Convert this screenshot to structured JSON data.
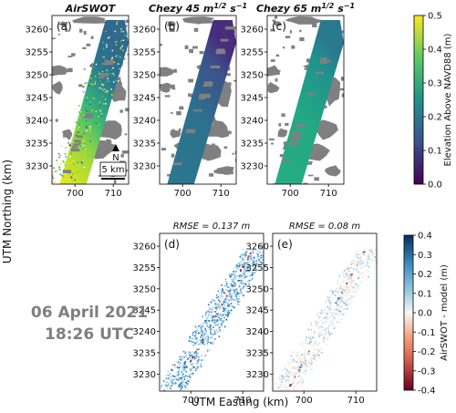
{
  "figure": {
    "date_line": "06 April 2021",
    "time_line": "18:26 UTC",
    "xlabel": "UTM Easting (km)",
    "ylabel": "UTM Northing (km)",
    "north_arrow_label": "N",
    "scalebar_label": "5 km"
  },
  "chart_data": [
    {
      "type": "heatmap",
      "panel_label": "(a)",
      "title": "AirSWOT",
      "colorbar": "elevation",
      "x_ticks": [
        700,
        710
      ],
      "y_ticks": [
        3230,
        3235,
        3240,
        3245,
        3250,
        3255,
        3260
      ],
      "xlim": [
        694,
        714
      ],
      "ylim": [
        3226,
        3263
      ]
    },
    {
      "type": "heatmap",
      "panel_label": "(b)",
      "title": "Chezy 45 m",
      "title_sup": "1/2",
      "title_unit": " s",
      "title_sup2": "−1",
      "colorbar": "elevation",
      "x_ticks": [
        700,
        710
      ],
      "y_ticks": [
        3230,
        3235,
        3240,
        3245,
        3250,
        3255,
        3260
      ],
      "xlim": [
        694,
        714
      ],
      "ylim": [
        3226,
        3263
      ]
    },
    {
      "type": "heatmap",
      "panel_label": "(c)",
      "title": "Chezy 65 m",
      "title_sup": "1/2",
      "title_unit": " s",
      "title_sup2": "−1",
      "colorbar": "elevation",
      "x_ticks": [
        700,
        710
      ],
      "y_ticks": [
        3230,
        3235,
        3240,
        3245,
        3250,
        3255,
        3260
      ],
      "xlim": [
        694,
        714
      ],
      "ylim": [
        3226,
        3263
      ]
    },
    {
      "type": "heatmap",
      "panel_label": "(d)",
      "title": "RMSE = 0.137 m",
      "colorbar": "difference",
      "x_ticks": [
        700,
        710
      ],
      "y_ticks": [
        3230,
        3235,
        3240,
        3245,
        3250,
        3255,
        3260
      ],
      "xlim": [
        694,
        714
      ],
      "ylim": [
        3226,
        3263
      ]
    },
    {
      "type": "heatmap",
      "panel_label": "(e)",
      "title": "RMSE = 0.08 m",
      "colorbar": "difference",
      "x_ticks": [
        700,
        710
      ],
      "y_ticks": [
        3230,
        3235,
        3240,
        3245,
        3250,
        3255,
        3260
      ],
      "xlim": [
        694,
        714
      ],
      "ylim": [
        3226,
        3263
      ]
    },
    {
      "type": "colorbar",
      "name": "elevation",
      "label": "Elevation Above NAVD88 (m)",
      "range": [
        0.0,
        0.5
      ],
      "ticks": [
        "0.0",
        "0.1",
        "0.2",
        "0.3",
        "0.4",
        "0.5"
      ],
      "colormap": [
        "#440154",
        "#3b528b",
        "#21918c",
        "#5ec962",
        "#fde725"
      ]
    },
    {
      "type": "colorbar",
      "name": "difference",
      "label": "AirSWOT - model (m)",
      "range": [
        -0.4,
        0.4
      ],
      "ticks": [
        "-0.4",
        "-0.3",
        "-0.2",
        "-0.1",
        "0.0",
        "0.1",
        "0.2",
        "0.3",
        "0.4"
      ],
      "colormap": [
        "#67001f",
        "#d6604d",
        "#f4a582",
        "#f7f7f7",
        "#92c5de",
        "#4393c3",
        "#053061"
      ]
    }
  ],
  "colors": {
    "land": "#808080",
    "panel_bg": "#ffffff",
    "annotation": "#7f7f7f"
  }
}
